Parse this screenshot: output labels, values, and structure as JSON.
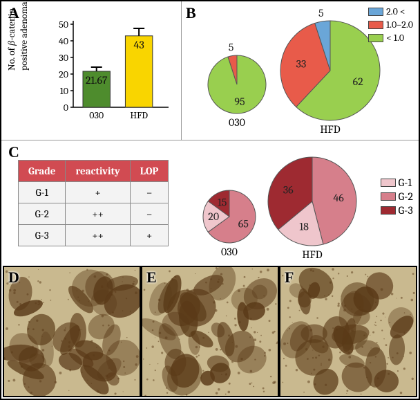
{
  "panelA": {
    "label": "A",
    "ylabel_prefix": "No. of ",
    "ylabel_italic": "β",
    "ylabel_suffix": "-catenin\npositive adenomas",
    "categories": [
      "030",
      "HFD"
    ],
    "values": [
      21.67,
      43
    ],
    "bar_colors": [
      "#4e8c2d",
      "#f9d500"
    ],
    "error_bars": [
      2.5,
      4.5
    ],
    "ylim": [
      0,
      50
    ],
    "ytick_step": 10,
    "axis_color": "#000000",
    "label_fontsize": 14,
    "value_fontsize": 16
  },
  "panelB": {
    "label": "B",
    "legend": [
      {
        "label": "2.0 <",
        "color": "#6aa6d8"
      },
      {
        "label": "1.0–2.0",
        "color": "#e85b4a"
      },
      {
        "label": "< 1.0",
        "color": "#99cf4f"
      }
    ],
    "pies": [
      {
        "category": "030",
        "radius": 42,
        "slices": [
          {
            "value": 95,
            "color": "#99cf4f",
            "show_label": true
          },
          {
            "value": 5,
            "color": "#e85b4a",
            "show_label": true
          }
        ]
      },
      {
        "category": "HFD",
        "radius": 72,
        "slices": [
          {
            "value": 62,
            "color": "#99cf4f",
            "show_label": true
          },
          {
            "value": 33,
            "color": "#e85b4a",
            "show_label": true
          },
          {
            "value": 5,
            "color": "#6aa6d8",
            "show_label": true
          }
        ]
      }
    ]
  },
  "panelC": {
    "label": "C",
    "table": {
      "columns": [
        "Grade",
        "reactivity",
        "LOP"
      ],
      "rows": [
        [
          "G-1",
          "+",
          "–"
        ],
        [
          "G-2",
          "++",
          "–"
        ],
        [
          "G-3",
          "++",
          "+"
        ]
      ],
      "header_bg": "#d14b52",
      "header_fg": "#ffffff",
      "cell_bg": "#f3f3f3",
      "border_color": "#888888"
    },
    "legend": [
      {
        "label": "G-1",
        "color": "#efc6cc"
      },
      {
        "label": "G-2",
        "color": "#d67f8b"
      },
      {
        "label": "G-3",
        "color": "#9e2a31"
      }
    ],
    "pies": [
      {
        "category": "030",
        "radius": 38,
        "slices": [
          {
            "value": 65,
            "color": "#d67f8b",
            "show_label": true
          },
          {
            "value": 20,
            "color": "#efc6cc",
            "show_label": true
          },
          {
            "value": 15,
            "color": "#9e2a31",
            "show_label": true
          }
        ]
      },
      {
        "category": "HFD",
        "radius": 64,
        "slices": [
          {
            "value": 46,
            "color": "#d67f8b",
            "show_label": true
          },
          {
            "value": 18,
            "color": "#efc6cc",
            "show_label": true
          },
          {
            "value": 36,
            "color": "#9e2a31",
            "show_label": true
          }
        ]
      }
    ]
  },
  "panelsDEF": {
    "labels": [
      "D",
      "E",
      "F"
    ],
    "bg_color": "#c9b98f",
    "stain_color": "#5a3a18"
  }
}
